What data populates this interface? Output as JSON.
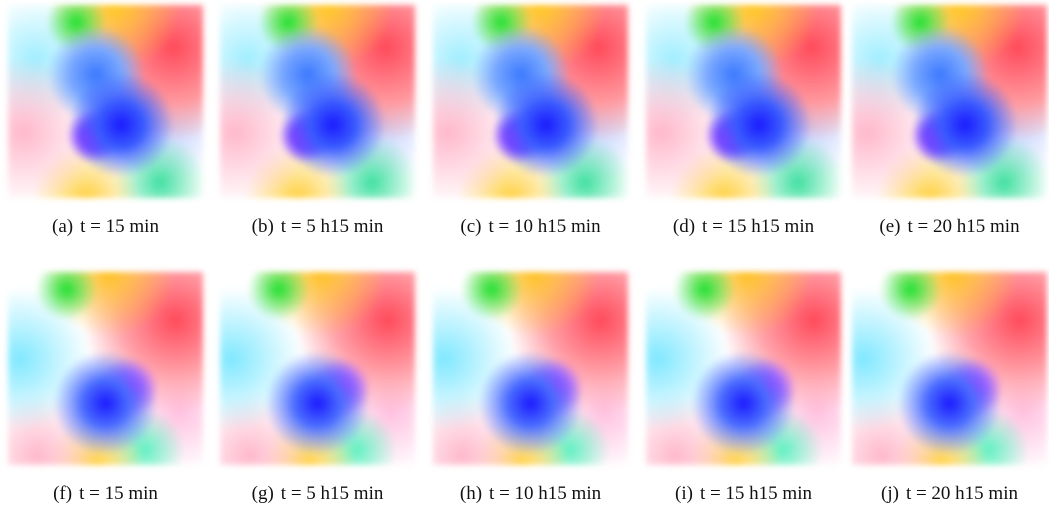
{
  "rows": [
    {
      "panels": [
        {
          "label": "(a)",
          "caption": "t = 15 min"
        },
        {
          "label": "(b)",
          "caption": "t = 5 h15 min"
        },
        {
          "label": "(c)",
          "caption": "t = 10 h15 min"
        },
        {
          "label": "(d)",
          "caption": "t = 15 h15 min"
        },
        {
          "label": "(e)",
          "caption": "t = 20 h15 min"
        }
      ]
    },
    {
      "panels": [
        {
          "label": "(f)",
          "caption": "t = 15 min"
        },
        {
          "label": "(g)",
          "caption": "t = 5 h15 min"
        },
        {
          "label": "(h)",
          "caption": "t = 10 h15 min"
        },
        {
          "label": "(i)",
          "caption": "t = 15 h15 min"
        },
        {
          "label": "(j)",
          "caption": "t = 20 h15 min"
        }
      ]
    }
  ]
}
